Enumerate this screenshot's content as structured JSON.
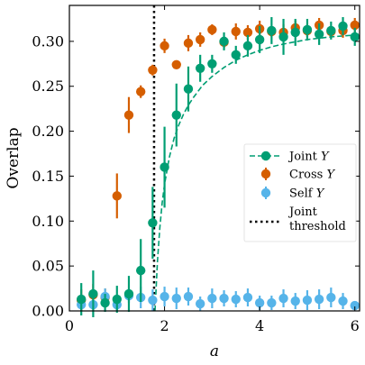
{
  "chart_data": {
    "type": "scatter",
    "xlabel": "a",
    "ylabel": "Overlap",
    "xlim": [
      0,
      6.1
    ],
    "ylim": [
      0,
      0.34
    ],
    "xticks": [
      0,
      2,
      4,
      6
    ],
    "xtick_labels": [
      "0",
      "2",
      "4",
      "6"
    ],
    "yticks": [
      0.0,
      0.05,
      0.1,
      0.15,
      0.2,
      0.25,
      0.3
    ],
    "ytick_labels": [
      "0.00",
      "0.05",
      "0.10",
      "0.15",
      "0.20",
      "0.25",
      "0.30"
    ],
    "threshold_x": 1.78,
    "legend_position": "center-right",
    "legend": [
      {
        "key": "joint",
        "label": "Joint ",
        "italic": "Y"
      },
      {
        "key": "cross",
        "label": "Cross ",
        "italic": "Y"
      },
      {
        "key": "self",
        "label": "Self ",
        "italic": "Y"
      },
      {
        "key": "threshold",
        "label": "Joint",
        "label2": "threshold"
      }
    ],
    "series": [
      {
        "key": "cross",
        "color": "#d55e00",
        "points": [
          {
            "x": 0.25,
            "y": 0.012,
            "err": 0.012
          },
          {
            "x": 0.5,
            "y": 0.018,
            "err": 0.012
          },
          {
            "x": 0.75,
            "y": 0.015,
            "err": 0.01
          },
          {
            "x": 1.0,
            "y": 0.128,
            "err": 0.025
          },
          {
            "x": 1.25,
            "y": 0.218,
            "err": 0.02
          },
          {
            "x": 1.5,
            "y": 0.244,
            "err": 0.007
          },
          {
            "x": 1.75,
            "y": 0.268,
            "err": 0.006
          },
          {
            "x": 2.0,
            "y": 0.295,
            "err": 0.008
          },
          {
            "x": 2.25,
            "y": 0.274,
            "err": 0.004
          },
          {
            "x": 2.5,
            "y": 0.298,
            "err": 0.009
          },
          {
            "x": 2.75,
            "y": 0.302,
            "err": 0.008
          },
          {
            "x": 3.0,
            "y": 0.313,
            "err": 0.006
          },
          {
            "x": 3.25,
            "y": 0.299,
            "err": 0.006
          },
          {
            "x": 3.5,
            "y": 0.311,
            "err": 0.009
          },
          {
            "x": 3.75,
            "y": 0.31,
            "err": 0.008
          },
          {
            "x": 4.0,
            "y": 0.314,
            "err": 0.009
          },
          {
            "x": 4.25,
            "y": 0.311,
            "err": 0.006
          },
          {
            "x": 4.5,
            "y": 0.31,
            "err": 0.009
          },
          {
            "x": 4.75,
            "y": 0.315,
            "err": 0.008
          },
          {
            "x": 5.0,
            "y": 0.312,
            "err": 0.007
          },
          {
            "x": 5.25,
            "y": 0.318,
            "err": 0.008
          },
          {
            "x": 5.5,
            "y": 0.311,
            "err": 0.006
          },
          {
            "x": 5.75,
            "y": 0.312,
            "err": 0.008
          },
          {
            "x": 6.0,
            "y": 0.318,
            "err": 0.008
          }
        ]
      },
      {
        "key": "self",
        "color": "#56b4e9",
        "points": [
          {
            "x": 0.25,
            "y": 0.007,
            "err": 0.005
          },
          {
            "x": 0.5,
            "y": 0.007,
            "err": 0.005
          },
          {
            "x": 0.75,
            "y": 0.016,
            "err": 0.009
          },
          {
            "x": 1.0,
            "y": 0.007,
            "err": 0.006
          },
          {
            "x": 1.25,
            "y": 0.017,
            "err": 0.008
          },
          {
            "x": 1.5,
            "y": 0.015,
            "err": 0.012
          },
          {
            "x": 1.75,
            "y": 0.012,
            "err": 0.012
          },
          {
            "x": 2.0,
            "y": 0.016,
            "err": 0.011
          },
          {
            "x": 2.25,
            "y": 0.014,
            "err": 0.012
          },
          {
            "x": 2.5,
            "y": 0.016,
            "err": 0.01
          },
          {
            "x": 2.75,
            "y": 0.008,
            "err": 0.008
          },
          {
            "x": 3.0,
            "y": 0.014,
            "err": 0.011
          },
          {
            "x": 3.25,
            "y": 0.014,
            "err": 0.009
          },
          {
            "x": 3.5,
            "y": 0.013,
            "err": 0.009
          },
          {
            "x": 3.75,
            "y": 0.015,
            "err": 0.01
          },
          {
            "x": 4.0,
            "y": 0.009,
            "err": 0.008
          },
          {
            "x": 4.25,
            "y": 0.009,
            "err": 0.008
          },
          {
            "x": 4.5,
            "y": 0.014,
            "err": 0.01
          },
          {
            "x": 4.75,
            "y": 0.011,
            "err": 0.009
          },
          {
            "x": 5.0,
            "y": 0.012,
            "err": 0.011
          },
          {
            "x": 5.25,
            "y": 0.013,
            "err": 0.011
          },
          {
            "x": 5.5,
            "y": 0.015,
            "err": 0.011
          },
          {
            "x": 5.75,
            "y": 0.011,
            "err": 0.009
          },
          {
            "x": 6.0,
            "y": 0.006,
            "err": 0.005
          }
        ]
      },
      {
        "key": "joint",
        "color": "#009e73",
        "points": [
          {
            "x": 0.25,
            "y": 0.013,
            "err": 0.018
          },
          {
            "x": 0.5,
            "y": 0.019,
            "err": 0.026
          },
          {
            "x": 0.75,
            "y": 0.009,
            "err": 0.01
          },
          {
            "x": 1.0,
            "y": 0.013,
            "err": 0.015
          },
          {
            "x": 1.25,
            "y": 0.019,
            "err": 0.02
          },
          {
            "x": 1.5,
            "y": 0.045,
            "err": 0.035
          },
          {
            "x": 1.75,
            "y": 0.098,
            "err": 0.04
          },
          {
            "x": 2.0,
            "y": 0.16,
            "err": 0.045
          },
          {
            "x": 2.25,
            "y": 0.218,
            "err": 0.035
          },
          {
            "x": 2.5,
            "y": 0.247,
            "err": 0.025
          },
          {
            "x": 2.75,
            "y": 0.27,
            "err": 0.015
          },
          {
            "x": 3.0,
            "y": 0.275,
            "err": 0.01
          },
          {
            "x": 3.25,
            "y": 0.3,
            "err": 0.01
          },
          {
            "x": 3.5,
            "y": 0.285,
            "err": 0.01
          },
          {
            "x": 3.75,
            "y": 0.295,
            "err": 0.012
          },
          {
            "x": 4.0,
            "y": 0.302,
            "err": 0.015
          },
          {
            "x": 4.25,
            "y": 0.312,
            "err": 0.015
          },
          {
            "x": 4.5,
            "y": 0.305,
            "err": 0.02
          },
          {
            "x": 4.75,
            "y": 0.31,
            "err": 0.015
          },
          {
            "x": 5.0,
            "y": 0.313,
            "err": 0.012
          },
          {
            "x": 5.25,
            "y": 0.308,
            "err": 0.012
          },
          {
            "x": 5.5,
            "y": 0.312,
            "err": 0.01
          },
          {
            "x": 5.75,
            "y": 0.317,
            "err": 0.01
          },
          {
            "x": 6.0,
            "y": 0.305,
            "err": 0.01
          }
        ]
      }
    ],
    "fit_curve": {
      "key": "joint",
      "color": "#009e73",
      "style": "dashed",
      "x": [
        1.8,
        1.85,
        1.9,
        1.95,
        2.0,
        2.1,
        2.2,
        2.3,
        2.4,
        2.5,
        2.6,
        2.8,
        3.0,
        3.25,
        3.5,
        3.75,
        4.0,
        4.25,
        4.5,
        5.0,
        5.5,
        6.0,
        6.1
      ],
      "y": [
        0.0,
        0.055,
        0.092,
        0.12,
        0.141,
        0.171,
        0.192,
        0.207,
        0.219,
        0.229,
        0.237,
        0.251,
        0.261,
        0.271,
        0.279,
        0.285,
        0.29,
        0.294,
        0.297,
        0.302,
        0.305,
        0.307,
        0.308
      ]
    }
  }
}
